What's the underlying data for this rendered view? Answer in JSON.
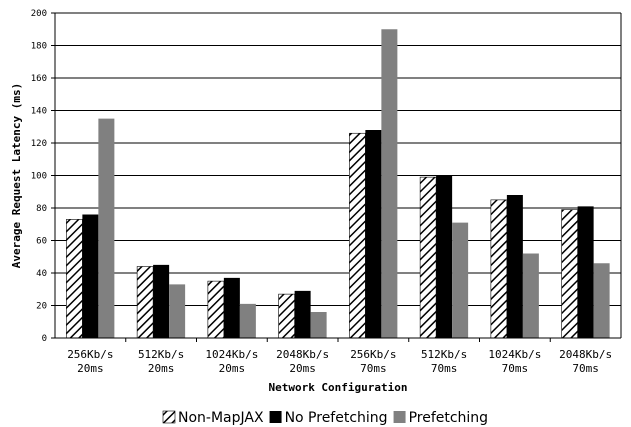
{
  "chart_data": {
    "type": "bar",
    "title": "",
    "xlabel": "Network Configuration",
    "ylabel": "Average Request Latency (ms)",
    "ylim": [
      0,
      200
    ],
    "yticks": [
      0,
      20,
      40,
      60,
      80,
      100,
      120,
      140,
      160,
      180,
      200
    ],
    "grid": true,
    "legend_position": "bottom",
    "categories": [
      [
        "256Kb/s",
        "20ms"
      ],
      [
        "512Kb/s",
        "20ms"
      ],
      [
        "1024Kb/s",
        "20ms"
      ],
      [
        "2048Kb/s",
        "20ms"
      ],
      [
        "256Kb/s",
        "70ms"
      ],
      [
        "512Kb/s",
        "70ms"
      ],
      [
        "1024Kb/s",
        "70ms"
      ],
      [
        "2048Kb/s",
        "70ms"
      ]
    ],
    "series": [
      {
        "name": "Non-MapJAX",
        "pattern": "hatch",
        "color": "#000000",
        "values": [
          73,
          44,
          35,
          27,
          126,
          99,
          85,
          79
        ]
      },
      {
        "name": "No Prefetching",
        "pattern": "solid",
        "color": "#000000",
        "values": [
          76,
          45,
          37,
          29,
          128,
          100,
          88,
          81
        ]
      },
      {
        "name": "Prefetching",
        "pattern": "solid",
        "color": "#808080",
        "values": [
          135,
          33,
          21,
          16,
          190,
          71,
          52,
          46
        ]
      }
    ]
  }
}
